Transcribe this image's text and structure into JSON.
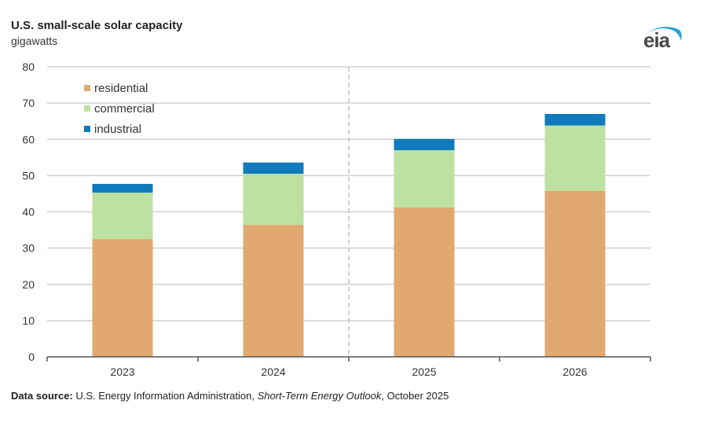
{
  "header": {
    "title": "U.S. small-scale solar capacity",
    "subtitle": "gigawatts",
    "logo_text": "eia"
  },
  "footer": {
    "source_label": "Data source:",
    "source_org": " U.S. Energy Information Administration, ",
    "source_report": "Short-Term Energy Outlook",
    "source_date": ", October 2025"
  },
  "chart_data": {
    "type": "bar",
    "stacked": true,
    "title": "U.S. small-scale solar capacity",
    "ylabel": "gigawatts",
    "xlabel": "",
    "categories": [
      "2023",
      "2024",
      "2025",
      "2026"
    ],
    "ylim": [
      0,
      80
    ],
    "yticks": [
      0,
      10,
      20,
      30,
      40,
      50,
      60,
      70,
      80
    ],
    "grid": true,
    "legend_position": "top-left",
    "forecast_divider_after": "2024",
    "series": [
      {
        "name": "residential",
        "color": "#e1a86f",
        "values": [
          32.5,
          36.4,
          41.2,
          45.8
        ]
      },
      {
        "name": "commercial",
        "color": "#bde1a1",
        "values": [
          12.8,
          14.1,
          15.8,
          18.0
        ]
      },
      {
        "name": "industrial",
        "color": "#0f7bbd",
        "values": [
          2.4,
          3.1,
          3.1,
          3.2
        ]
      }
    ]
  }
}
